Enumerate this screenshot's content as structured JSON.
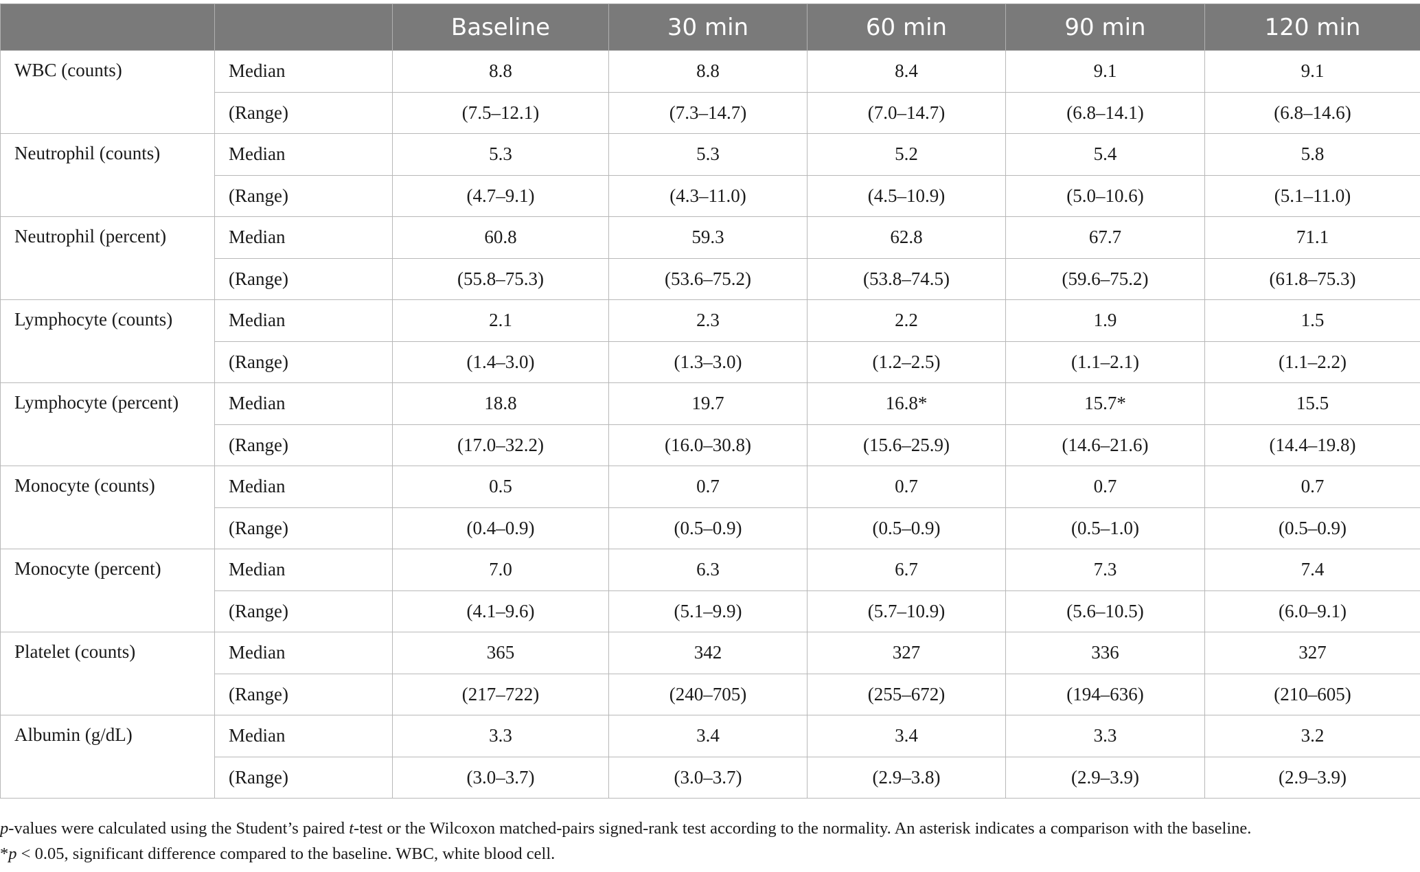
{
  "table": {
    "headers": [
      "",
      "",
      "Baseline",
      "30 min",
      "60 min",
      "90 min",
      "120 min"
    ],
    "groups": [
      {
        "label": "WBC (counts)",
        "rows": [
          {
            "stat": "Median",
            "values": [
              "8.8",
              "8.8",
              "8.4",
              "9.1",
              "9.1"
            ]
          },
          {
            "stat": "(Range)",
            "values": [
              "(7.5–12.1)",
              "(7.3–14.7)",
              "(7.0–14.7)",
              "(6.8–14.1)",
              "(6.8–14.6)"
            ]
          }
        ]
      },
      {
        "label": "Neutrophil (counts)",
        "rows": [
          {
            "stat": "Median",
            "values": [
              "5.3",
              "5.3",
              "5.2",
              "5.4",
              "5.8"
            ]
          },
          {
            "stat": "(Range)",
            "values": [
              "(4.7–9.1)",
              "(4.3–11.0)",
              "(4.5–10.9)",
              "(5.0–10.6)",
              "(5.1–11.0)"
            ]
          }
        ]
      },
      {
        "label": "Neutrophil (percent)",
        "rows": [
          {
            "stat": "Median",
            "values": [
              "60.8",
              "59.3",
              "62.8",
              "67.7",
              "71.1"
            ]
          },
          {
            "stat": "(Range)",
            "values": [
              "(55.8–75.3)",
              "(53.6–75.2)",
              "(53.8–74.5)",
              "(59.6–75.2)",
              "(61.8–75.3)"
            ]
          }
        ]
      },
      {
        "label": "Lymphocyte (counts)",
        "rows": [
          {
            "stat": "Median",
            "values": [
              "2.1",
              "2.3",
              "2.2",
              "1.9",
              "1.5"
            ]
          },
          {
            "stat": "(Range)",
            "values": [
              "(1.4–3.0)",
              "(1.3–3.0)",
              "(1.2–2.5)",
              "(1.1–2.1)",
              "(1.1–2.2)"
            ]
          }
        ]
      },
      {
        "label": "Lymphocyte (percent)",
        "rows": [
          {
            "stat": "Median",
            "values": [
              "18.8",
              "19.7",
              "16.8*",
              "15.7*",
              "15.5"
            ]
          },
          {
            "stat": "(Range)",
            "values": [
              "(17.0–32.2)",
              "(16.0–30.8)",
              "(15.6–25.9)",
              "(14.6–21.6)",
              "(14.4–19.8)"
            ]
          }
        ]
      },
      {
        "label": "Monocyte (counts)",
        "rows": [
          {
            "stat": "Median",
            "values": [
              "0.5",
              "0.7",
              "0.7",
              "0.7",
              "0.7"
            ]
          },
          {
            "stat": "(Range)",
            "values": [
              "(0.4–0.9)",
              "(0.5–0.9)",
              "(0.5–0.9)",
              "(0.5–1.0)",
              "(0.5–0.9)"
            ]
          }
        ]
      },
      {
        "label": "Monocyte (percent)",
        "rows": [
          {
            "stat": "Median",
            "values": [
              "7.0",
              "6.3",
              "6.7",
              "7.3",
              "7.4"
            ]
          },
          {
            "stat": "(Range)",
            "values": [
              "(4.1–9.6)",
              "(5.1–9.9)",
              "(5.7–10.9)",
              "(5.6–10.5)",
              "(6.0–9.1)"
            ]
          }
        ]
      },
      {
        "label": "Platelet (counts)",
        "rows": [
          {
            "stat": "Median",
            "values": [
              "365",
              "342",
              "327",
              "336",
              "327"
            ]
          },
          {
            "stat": "(Range)",
            "values": [
              "(217–722)",
              "(240–705)",
              "(255–672)",
              "(194–636)",
              "(210–605)"
            ]
          }
        ]
      },
      {
        "label": "Albumin (g/dL)",
        "rows": [
          {
            "stat": "Median",
            "values": [
              "3.3",
              "3.4",
              "3.4",
              "3.3",
              "3.2"
            ]
          },
          {
            "stat": "(Range)",
            "values": [
              "(3.0–3.7)",
              "(3.0–3.7)",
              "(2.9–3.8)",
              "(2.9–3.9)",
              "(2.9–3.9)"
            ]
          }
        ]
      }
    ]
  },
  "footnotes": {
    "line1": {
      "p_italic": "p",
      "part1": "-values were calculated using the Student’s paired ",
      "t_italic": "t",
      "part2": "-test or the Wilcoxon matched-pairs signed-rank test according to the normality. An asterisk indicates a comparison with the baseline."
    },
    "line2": {
      "star": "*",
      "p_italic": "p",
      "rest": " < 0.05, significant difference compared to the baseline. WBC, white blood cell."
    }
  }
}
